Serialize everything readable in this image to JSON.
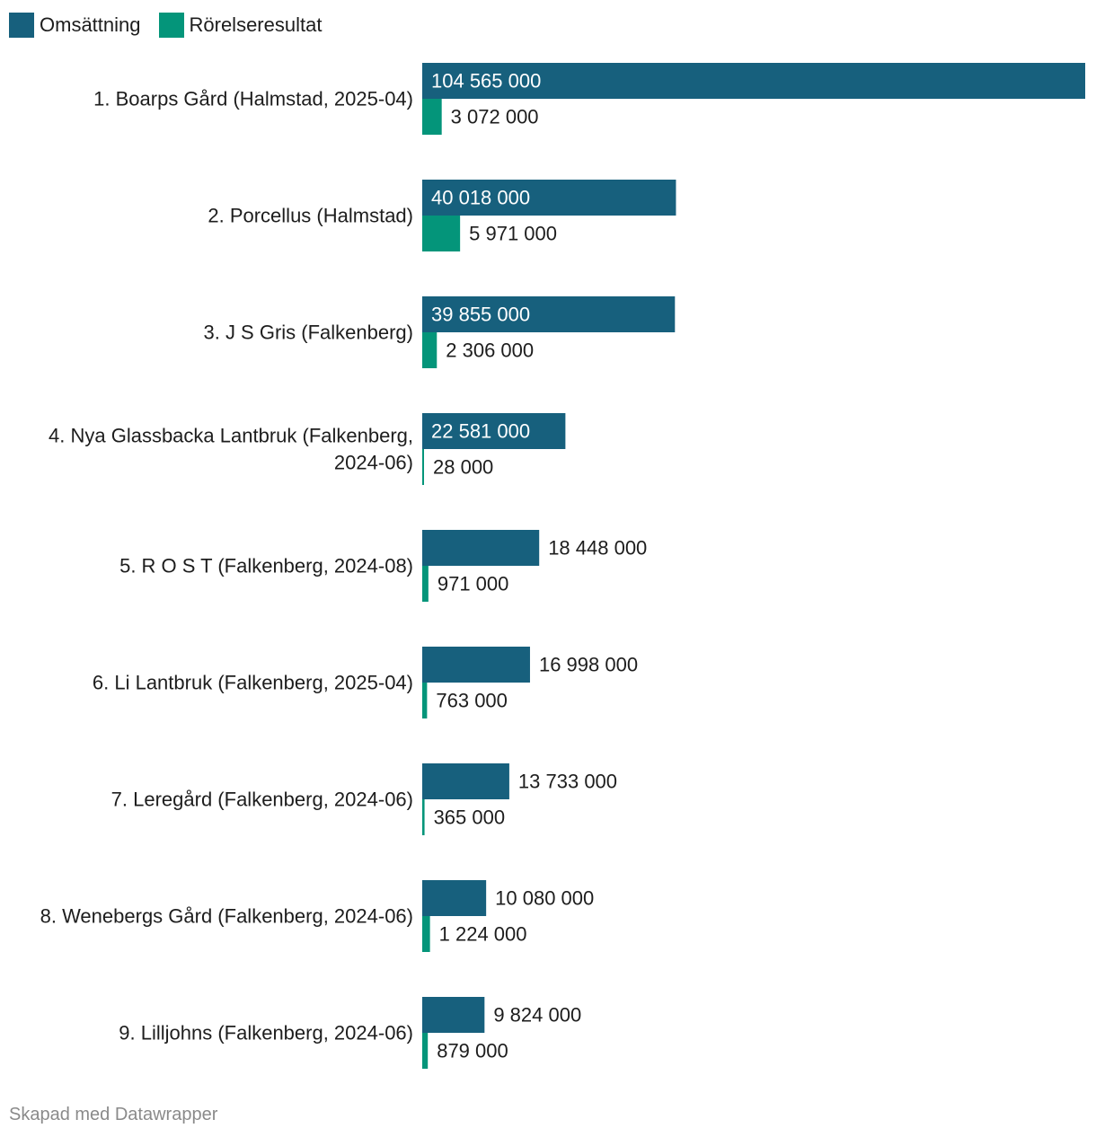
{
  "legend": [
    {
      "label": "Omsättning",
      "color": "#17607d"
    },
    {
      "label": "Rörelseresultat",
      "color": "#04957a"
    }
  ],
  "chart_data": {
    "type": "bar",
    "orientation": "horizontal",
    "categories": [
      [
        "1. Boarps Gård (Halmstad, 2025-04)"
      ],
      [
        "2. Porcellus (Halmstad)"
      ],
      [
        "3. J S Gris (Falkenberg)"
      ],
      [
        "4. Nya Glassbacka Lantbruk (Falkenberg,",
        "2024-06)"
      ],
      [
        "5. R O S T (Falkenberg, 2024-08)"
      ],
      [
        "6. Li Lantbruk (Falkenberg, 2025-04)"
      ],
      [
        "7. Leregård (Falkenberg, 2024-06)"
      ],
      [
        "8. Wenebergs Gård (Falkenberg, 2024-06)"
      ],
      [
        "9. Lilljohns (Falkenberg, 2024-06)"
      ]
    ],
    "series": [
      {
        "name": "Omsättning",
        "color": "#17607d",
        "values": [
          104565000,
          40018000,
          39855000,
          22581000,
          18448000,
          16998000,
          13733000,
          10080000,
          9824000
        ],
        "labels": [
          "104 565 000",
          "40 018 000",
          "39 855 000",
          "22 581 000",
          "18 448 000",
          "16 998 000",
          "13 733 000",
          "10 080 000",
          "9 824 000"
        ]
      },
      {
        "name": "Rörelseresultat",
        "color": "#04957a",
        "values": [
          3072000,
          5971000,
          2306000,
          28000,
          971000,
          763000,
          365000,
          1224000,
          879000
        ],
        "labels": [
          "3 072 000",
          "5 971 000",
          "2 306 000",
          "28 000",
          "971 000",
          "763 000",
          "365 000",
          "1 224 000",
          "879 000"
        ]
      }
    ],
    "xlim": [
      0,
      104565000
    ],
    "grid": false,
    "legend_position": "top-left"
  },
  "footer": "Skapad med Datawrapper"
}
